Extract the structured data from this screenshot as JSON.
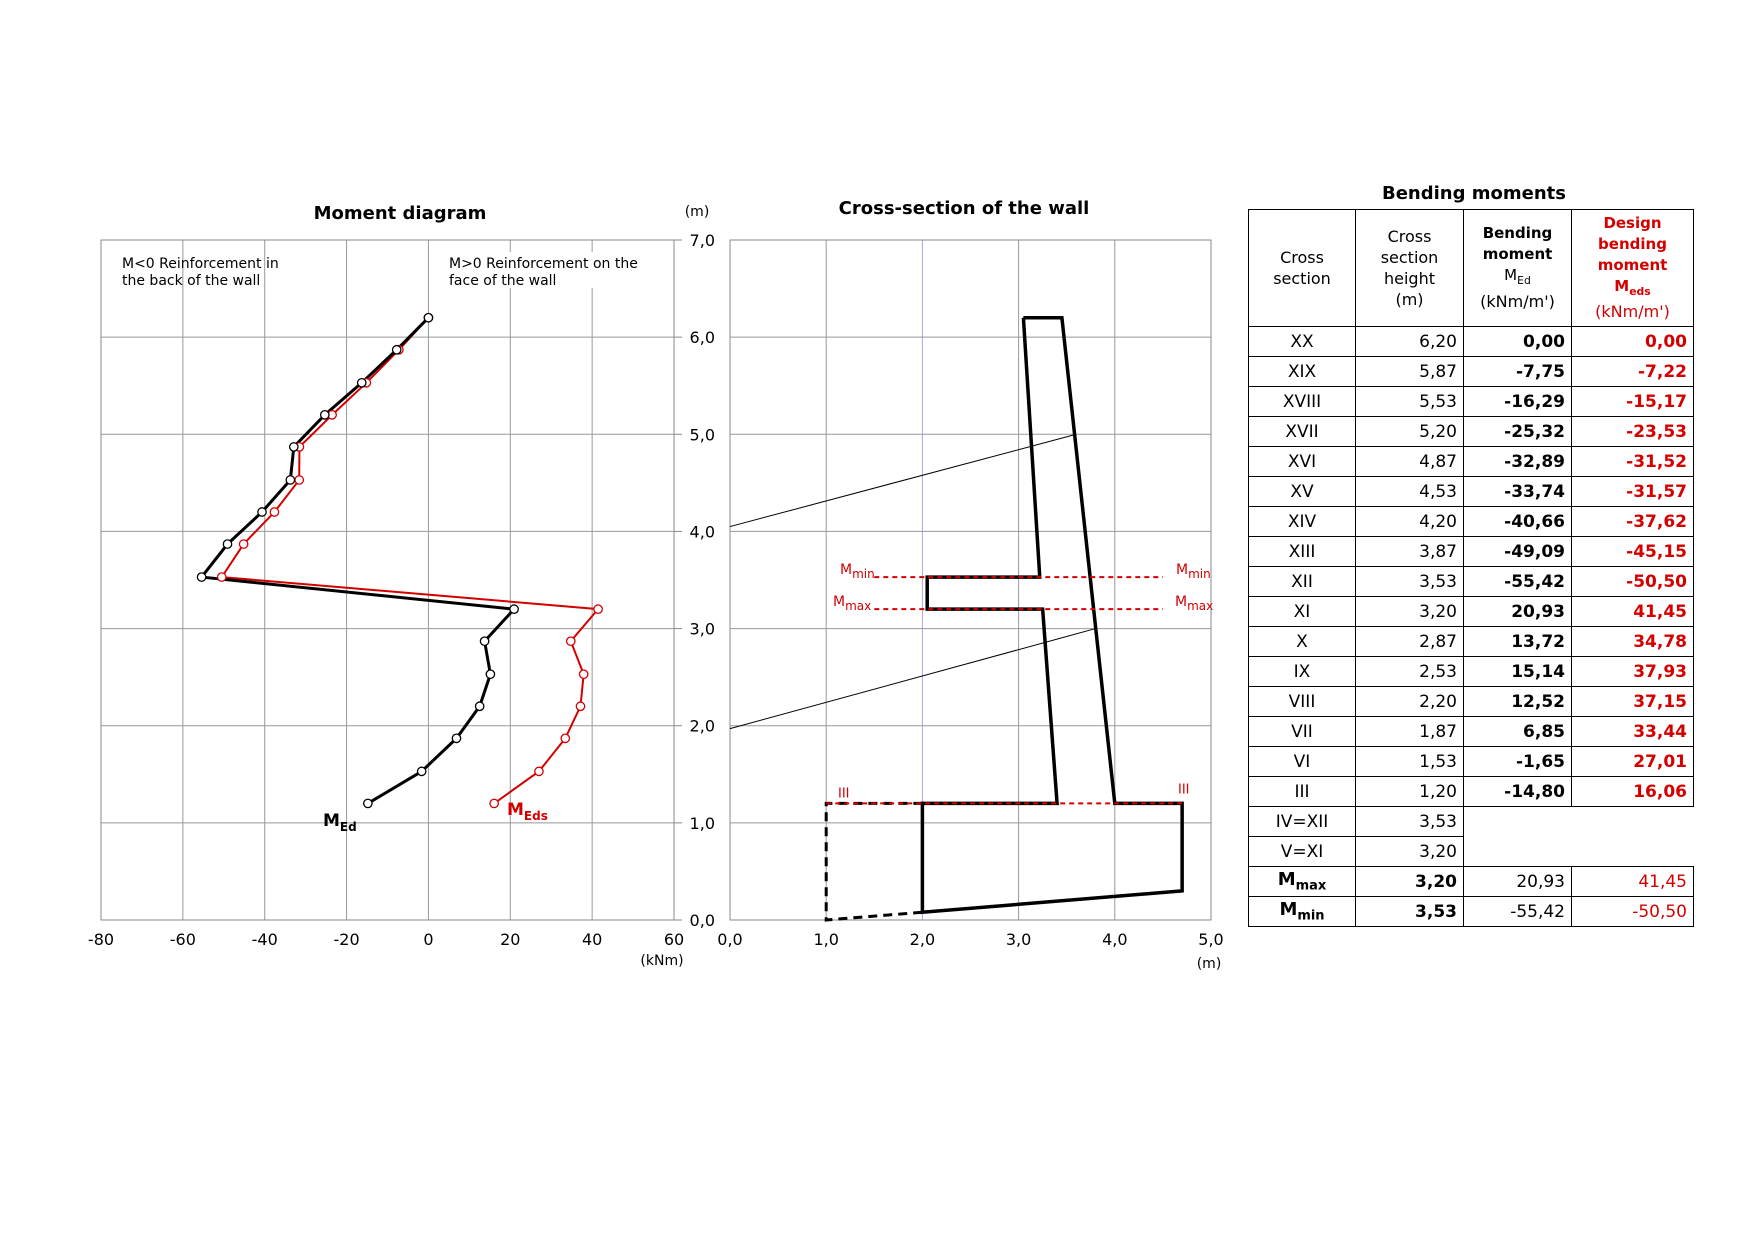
{
  "moment_diagram": {
    "title": "Moment diagram",
    "y_unit": "(m)",
    "x_unit": "(kNm)",
    "note_left_line1": "M<0   Reinforcement in",
    "note_left_line2": "the back of the wall",
    "note_right_line1": "M>0  Reinforcement on the",
    "note_right_line2": "face of the wall",
    "label_med_main": "M",
    "label_med_sub": "Ed",
    "label_meds_main": "M",
    "label_meds_sub": "Eds",
    "x_ticks": [
      "-80",
      "-60",
      "-40",
      "-20",
      "0",
      "20",
      "40",
      "60"
    ],
    "y_ticks": [
      "0,0",
      "1,0",
      "2,0",
      "3,0",
      "4,0",
      "5,0",
      "6,0",
      "7,0"
    ]
  },
  "cross_section": {
    "title": "Cross-section of the wall",
    "x_unit": "(m)",
    "x_ticks": [
      "0,0",
      "1,0",
      "2,0",
      "3,0",
      "4,0",
      "5,0"
    ],
    "label_mmin_main": "M",
    "label_mmin_sub": "min",
    "label_mmax_main": "M",
    "label_mmax_sub": "max",
    "label_iii": "III"
  },
  "table": {
    "title": "Bending moments",
    "headers": {
      "c1": "Cross section",
      "c2_l1": "Cross",
      "c2_l2": "section",
      "c2_l3": "height",
      "c2_l4": "(m)",
      "c3_l1": "Bending",
      "c3_l2": "moment",
      "c3_l3_main": "M",
      "c3_l3_sub": "Ed",
      "c3_l4": "(kNm/m')",
      "c4_l1": "Design",
      "c4_l2": "bending",
      "c4_l3": "moment",
      "c4_l4_main": "M",
      "c4_l4_sub": "eds",
      "c4_l5": "(kNm/m')"
    },
    "rows": [
      {
        "sec": "XX",
        "h": "6,20",
        "med": "0,00",
        "meds": "0,00"
      },
      {
        "sec": "XIX",
        "h": "5,87",
        "med": "-7,75",
        "meds": "-7,22"
      },
      {
        "sec": "XVIII",
        "h": "5,53",
        "med": "-16,29",
        "meds": "-15,17"
      },
      {
        "sec": "XVII",
        "h": "5,20",
        "med": "-25,32",
        "meds": "-23,53"
      },
      {
        "sec": "XVI",
        "h": "4,87",
        "med": "-32,89",
        "meds": "-31,52"
      },
      {
        "sec": "XV",
        "h": "4,53",
        "med": "-33,74",
        "meds": "-31,57"
      },
      {
        "sec": "XIV",
        "h": "4,20",
        "med": "-40,66",
        "meds": "-37,62"
      },
      {
        "sec": "XIII",
        "h": "3,87",
        "med": "-49,09",
        "meds": "-45,15"
      },
      {
        "sec": "XII",
        "h": "3,53",
        "med": "-55,42",
        "meds": "-50,50"
      },
      {
        "sec": "XI",
        "h": "3,20",
        "med": "20,93",
        "meds": "41,45"
      },
      {
        "sec": "X",
        "h": "2,87",
        "med": "13,72",
        "meds": "34,78"
      },
      {
        "sec": "IX",
        "h": "2,53",
        "med": "15,14",
        "meds": "37,93"
      },
      {
        "sec": "VIII",
        "h": "2,20",
        "med": "12,52",
        "meds": "37,15"
      },
      {
        "sec": "VII",
        "h": "1,87",
        "med": "6,85",
        "meds": "33,44"
      },
      {
        "sec": "VI",
        "h": "1,53",
        "med": "-1,65",
        "meds": "27,01"
      },
      {
        "sec": "III",
        "h": "1,20",
        "med": "-14,80",
        "meds": "16,06"
      }
    ],
    "extra_rows": [
      {
        "sec": "IV=XII",
        "h": "3,53"
      },
      {
        "sec": "V=XI",
        "h": "3,20"
      }
    ],
    "summary_rows": [
      {
        "sec_main": "M",
        "sec_sub": "max",
        "h": "3,20",
        "med": "20,93",
        "meds": "41,45"
      },
      {
        "sec_main": "M",
        "sec_sub": "min",
        "h": "3,53",
        "med": "-55,42",
        "meds": "-50,50"
      }
    ]
  },
  "chart_data": [
    {
      "type": "line",
      "title": "Moment diagram",
      "xlabel": "(kNm)",
      "ylabel": "(m)",
      "xlim": [
        -80,
        60
      ],
      "ylim": [
        0,
        7
      ],
      "grid": true,
      "series": [
        {
          "name": "MEd",
          "color": "#000000",
          "x": [
            0.0,
            -7.75,
            -16.29,
            -25.32,
            -32.89,
            -33.74,
            -40.66,
            -49.09,
            -55.42,
            20.93,
            13.72,
            15.14,
            12.52,
            6.85,
            -1.65,
            -14.8
          ],
          "y": [
            6.2,
            5.87,
            5.53,
            5.2,
            4.87,
            4.53,
            4.2,
            3.87,
            3.53,
            3.2,
            2.87,
            2.53,
            2.2,
            1.87,
            1.53,
            1.2
          ]
        },
        {
          "name": "MEds",
          "color": "#d40000",
          "x": [
            0.0,
            -7.22,
            -15.17,
            -23.53,
            -31.52,
            -31.57,
            -37.62,
            -45.15,
            -50.5,
            41.45,
            34.78,
            37.93,
            37.15,
            33.44,
            27.01,
            16.06
          ],
          "y": [
            6.2,
            5.87,
            5.53,
            5.2,
            4.87,
            4.53,
            4.2,
            3.87,
            3.53,
            3.2,
            2.87,
            2.53,
            2.2,
            1.87,
            1.53,
            1.2
          ]
        }
      ]
    },
    {
      "type": "line",
      "title": "Cross-section of the wall",
      "xlabel": "(m)",
      "xlim": [
        0,
        5
      ],
      "ylim": [
        0,
        7
      ],
      "grid": true,
      "series": [
        {
          "name": "wall",
          "color": "#000000",
          "x": [
            3.05,
            3.45,
            4.0,
            4.7,
            4.7,
            2.0,
            2.0,
            3.4,
            3.25,
            2.05,
            2.05,
            3.22,
            3.05
          ],
          "y": [
            6.2,
            6.2,
            1.2,
            1.2,
            0.3,
            0.08,
            1.2,
            1.2,
            3.2,
            3.2,
            3.53,
            3.53,
            6.2
          ]
        },
        {
          "name": "foundation-dashed",
          "color": "#000000",
          "x": [
            2.0,
            1.0,
            1.0,
            2.0
          ],
          "y": [
            1.2,
            1.2,
            0.0,
            0.08
          ]
        },
        {
          "name": "M_min line",
          "color": "#d40000",
          "x": [
            1.5,
            4.5
          ],
          "y": [
            3.53,
            3.53
          ]
        },
        {
          "name": "M_max line",
          "color": "#d40000",
          "x": [
            1.5,
            4.5
          ],
          "y": [
            3.2,
            3.2
          ]
        },
        {
          "name": "III line",
          "color": "#d40000",
          "x": [
            1.0,
            4.7
          ],
          "y": [
            1.2,
            1.2
          ]
        },
        {
          "name": "slope-line-1",
          "color": "#000000",
          "x": [
            0.0,
            3.6
          ],
          "y": [
            4.05,
            5.0
          ]
        },
        {
          "name": "slope-line-2",
          "color": "#000000",
          "x": [
            0.0,
            3.8
          ],
          "y": [
            1.97,
            3.0
          ]
        }
      ]
    }
  ]
}
